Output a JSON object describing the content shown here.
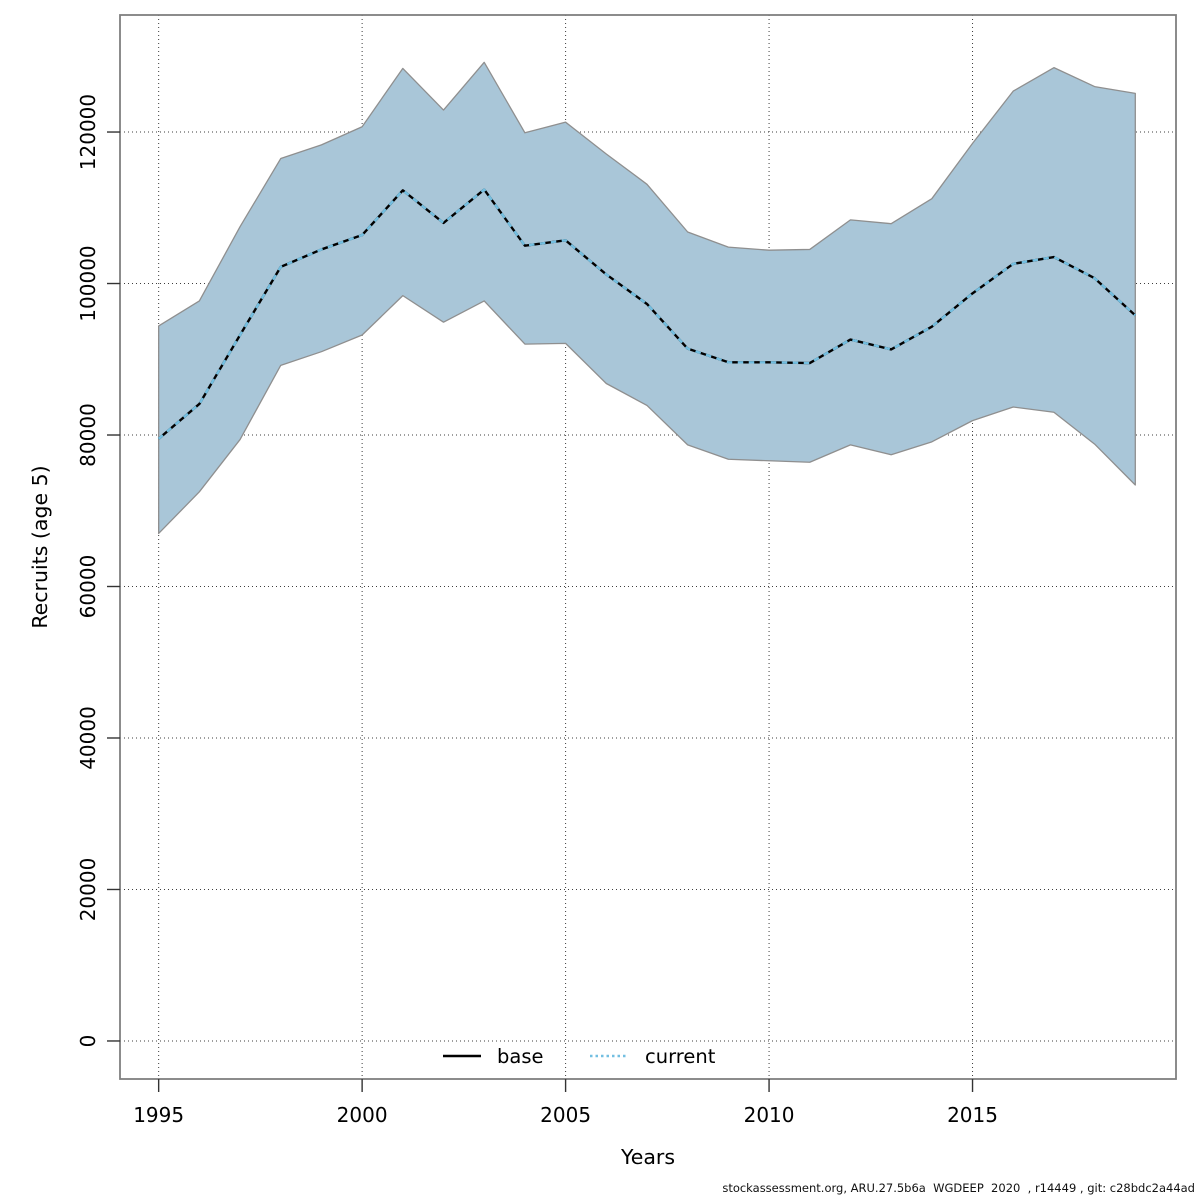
{
  "figure": {
    "footer": "stockassessment.org, ARU.27.5b6a  WGDEEP  2020  , r14449 , git: c28bdc2a44ad"
  },
  "chart_data": {
    "type": "line",
    "title": "",
    "xlabel": "Years",
    "ylabel": "Recruits (age 5)",
    "grid": true,
    "legend_position": "bottom-center-inside",
    "x": [
      1995,
      1996,
      1997,
      1998,
      1999,
      2000,
      2001,
      2002,
      2003,
      2004,
      2005,
      2006,
      2007,
      2008,
      2009,
      2010,
      2011,
      2012,
      2013,
      2014,
      2015,
      2016,
      2017,
      2018,
      2019
    ],
    "x_ticks": [
      1995,
      2000,
      2005,
      2010,
      2015
    ],
    "y_ticks": [
      0,
      20000,
      40000,
      60000,
      80000,
      100000,
      120000
    ],
    "xlim": [
      1994.05,
      2020.0
    ],
    "ylim": [
      -5020,
      135450
    ],
    "series": [
      {
        "name": "base",
        "line_style": "solid",
        "color": "#000000",
        "values": [
          79500,
          84100,
          93200,
          102200,
          104500,
          106400,
          112300,
          108000,
          112400,
          105000,
          105700,
          101200,
          97300,
          91400,
          89600,
          89600,
          89500,
          92600,
          91300,
          94300,
          98700,
          102600,
          103500,
          100700,
          95800
        ]
      },
      {
        "name": "current",
        "line_style": "dashed",
        "color": "#73bfe1",
        "values": [
          79500,
          84100,
          93200,
          102200,
          104500,
          106400,
          112300,
          108000,
          112400,
          105000,
          105700,
          101200,
          97300,
          91400,
          89600,
          89600,
          89500,
          92600,
          91300,
          94300,
          98700,
          102600,
          103500,
          100700,
          95800
        ]
      }
    ],
    "band": {
      "label": "confidence-band",
      "fill": "#a9c6d8",
      "edge": "#8f8f8f",
      "lower": [
        67000,
        72500,
        79400,
        89200,
        91000,
        93200,
        98400,
        94900,
        97700,
        92000,
        92100,
        86800,
        83900,
        78700,
        76800,
        76600,
        76400,
        78700,
        77400,
        79100,
        81900,
        83700,
        83000,
        78800,
        73400
      ],
      "upper": [
        94400,
        97700,
        107500,
        116500,
        118300,
        120700,
        128400,
        122900,
        129200,
        119900,
        121300,
        117100,
        113100,
        106800,
        104800,
        104400,
        104500,
        108400,
        107900,
        111200,
        118500,
        125400,
        128500,
        126000,
        125100
      ]
    },
    "style": {
      "grid_color": "#3d3d3d",
      "box_color": "#7f7f7f",
      "tick_color": "#333333",
      "label_color": "#000000"
    }
  }
}
